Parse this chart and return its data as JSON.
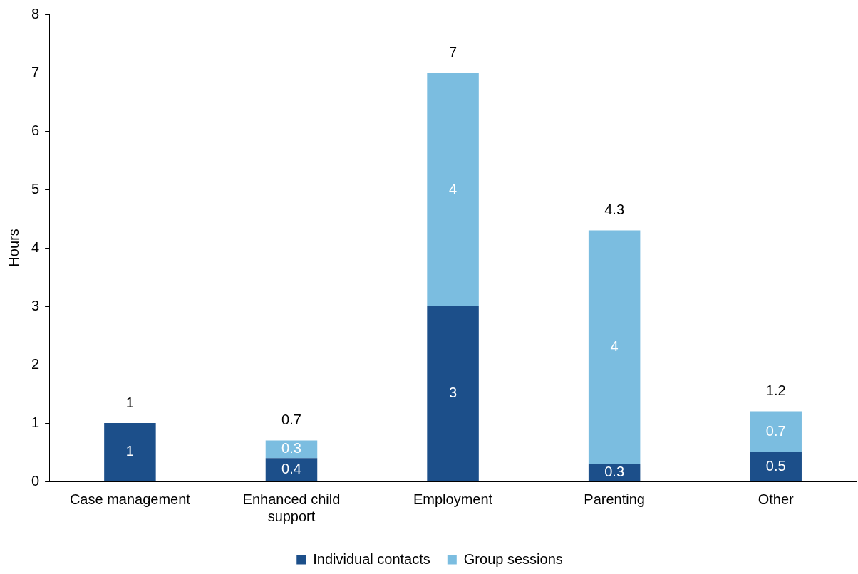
{
  "chart_data": {
    "type": "bar",
    "stacked": true,
    "ylabel": "Hours",
    "categories": [
      "Case management",
      "Enhanced child support",
      "Employment",
      "Parenting",
      "Other"
    ],
    "series": [
      {
        "name": "Individual contacts",
        "color": "#1c4f8a",
        "values": [
          1,
          0.4,
          3,
          0.3,
          0.5
        ]
      },
      {
        "name": "Group sessions",
        "color": "#7bbde0",
        "values": [
          null,
          0.3,
          4,
          4,
          0.7
        ]
      }
    ],
    "ylim": [
      0,
      8
    ],
    "yticks": [
      0,
      1,
      2,
      3,
      4,
      5,
      6,
      7,
      8
    ],
    "grid": false,
    "legend": "bottom",
    "data_labels": true,
    "totals": [
      "1",
      "0.7",
      "7",
      "4.3",
      "1.2"
    ]
  }
}
